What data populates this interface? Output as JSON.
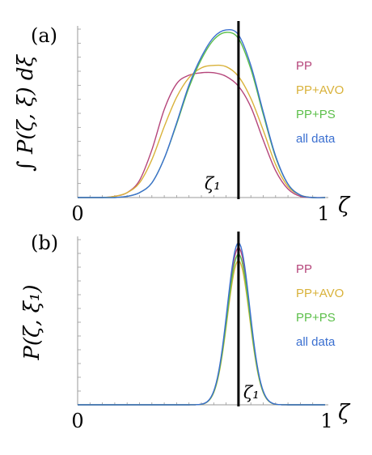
{
  "colors": {
    "PP": "#b5457a",
    "PP+AVO": "#d9b23a",
    "PP+PS": "#5cbf4a",
    "all data": "#3a6fd0",
    "reference_line": "#000000",
    "axis": "#9a9a9a"
  },
  "chart_data": [
    {
      "panel_label": "(a)",
      "type": "line",
      "ylabel": "∫ P(ζ, ξ) dξ",
      "xlabel": "ζ",
      "x_ticks": [
        "0",
        "1"
      ],
      "xlim": [
        0,
        1
      ],
      "ylim": [
        0,
        1.35
      ],
      "grid": false,
      "legend_position": "right",
      "vline": {
        "x": 0.65,
        "label": "ζ₁"
      },
      "series": [
        {
          "name": "PP",
          "color_key": "PP",
          "x": [
            0,
            0.1,
            0.15,
            0.2,
            0.25,
            0.3,
            0.35,
            0.4,
            0.45,
            0.5,
            0.55,
            0.6,
            0.65,
            0.7,
            0.75,
            0.8,
            0.85,
            0.9,
            0.95,
            1.0
          ],
          "y": [
            0,
            0,
            0.01,
            0.04,
            0.14,
            0.39,
            0.72,
            0.93,
            1.0,
            1.02,
            1.02,
            0.99,
            0.91,
            0.74,
            0.47,
            0.22,
            0.07,
            0.01,
            0,
            0
          ]
        },
        {
          "name": "PP+AVO",
          "color_key": "PP+AVO",
          "x": [
            0,
            0.1,
            0.15,
            0.2,
            0.25,
            0.3,
            0.35,
            0.4,
            0.45,
            0.5,
            0.55,
            0.6,
            0.65,
            0.7,
            0.75,
            0.8,
            0.85,
            0.9,
            0.95,
            1.0
          ],
          "y": [
            0,
            0,
            0.01,
            0.04,
            0.12,
            0.31,
            0.58,
            0.82,
            0.98,
            1.06,
            1.08,
            1.07,
            0.99,
            0.81,
            0.55,
            0.27,
            0.09,
            0.02,
            0,
            0
          ]
        },
        {
          "name": "PP+PS",
          "color_key": "PP+PS",
          "x": [
            0,
            0.1,
            0.15,
            0.2,
            0.25,
            0.3,
            0.35,
            0.4,
            0.45,
            0.5,
            0.55,
            0.6,
            0.65,
            0.7,
            0.75,
            0.8,
            0.85,
            0.9,
            0.95,
            1.0
          ],
          "y": [
            0,
            0,
            0,
            0.01,
            0.04,
            0.12,
            0.32,
            0.6,
            0.9,
            1.13,
            1.29,
            1.35,
            1.3,
            1.05,
            0.68,
            0.33,
            0.11,
            0.02,
            0,
            0
          ]
        },
        {
          "name": "all data",
          "color_key": "all data",
          "x": [
            0,
            0.1,
            0.15,
            0.2,
            0.25,
            0.3,
            0.35,
            0.4,
            0.45,
            0.5,
            0.55,
            0.6,
            0.65,
            0.7,
            0.75,
            0.8,
            0.85,
            0.9,
            0.95,
            1.0
          ],
          "y": [
            0,
            0,
            0,
            0.01,
            0.04,
            0.12,
            0.32,
            0.61,
            0.92,
            1.15,
            1.31,
            1.37,
            1.33,
            1.08,
            0.7,
            0.34,
            0.11,
            0.02,
            0,
            0
          ]
        }
      ]
    },
    {
      "panel_label": "(b)",
      "type": "line",
      "ylabel": "P(ζ, ξ₁)",
      "xlabel": "ζ",
      "x_ticks": [
        "0",
        "1"
      ],
      "xlim": [
        0,
        1
      ],
      "ylim": [
        0,
        1.0
      ],
      "grid": false,
      "legend_position": "right",
      "vline": {
        "x": 0.65,
        "label": "ζ₁"
      },
      "series": [
        {
          "name": "PP",
          "color_key": "PP",
          "center": 0.65,
          "width": 0.045,
          "peak": 0.97
        },
        {
          "name": "PP+AVO",
          "color_key": "PP+AVO",
          "center": 0.65,
          "width": 0.045,
          "peak": 0.89
        },
        {
          "name": "PP+PS",
          "color_key": "PP+PS",
          "center": 0.65,
          "width": 0.045,
          "peak": 0.93
        },
        {
          "name": "all data",
          "color_key": "all data",
          "center": 0.65,
          "width": 0.045,
          "peak": 1.0
        }
      ]
    }
  ]
}
